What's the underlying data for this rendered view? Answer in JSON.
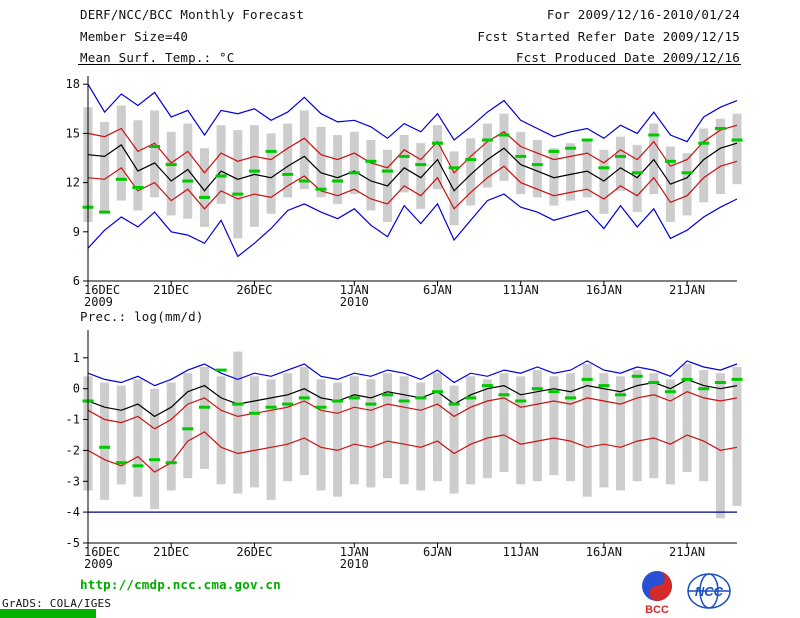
{
  "header": {
    "title": "DERF/NCC/BCC Monthly Forecast",
    "member_size": "Member Size=40",
    "forecast_for": "For 2009/12/16-2010/01/24",
    "fcst_refer": "Fcst Started Refer Date 2009/12/15",
    "fcst_produced": "Fcst Produced Date 2009/12/16"
  },
  "footer": {
    "website": "http://cmdp.ncc.cma.gov.cn",
    "credit": "GrADS: COLA/IGES"
  },
  "logos": {
    "bcc": "BCC",
    "ncc": "NCC"
  },
  "colors": {
    "link_green": "#00aa00",
    "footer_bar_green": "#00b400",
    "obs_green": "#00c800",
    "envelope_blue": "#0000dd",
    "quartile_red": "#cc1111",
    "mean_black": "#000000",
    "spread_gray": "#c8c8c8",
    "floor_navy": "#000080"
  },
  "chart_data": [
    {
      "type": "line",
      "name": "mean-surface-temperature",
      "title": "Mean Surf. Temp.: °C",
      "ylabel": "°C",
      "ylim": [
        6,
        18.5
      ],
      "yticks": [
        6,
        9,
        12,
        15,
        18
      ],
      "grid": false,
      "n_points": 40,
      "x_ticks": [
        {
          "day": 0,
          "label": "16DEC",
          "year": "2009"
        },
        {
          "day": 5,
          "label": "21DEC"
        },
        {
          "day": 10,
          "label": "26DEC"
        },
        {
          "day": 16,
          "label": "1JAN",
          "year": "2010"
        },
        {
          "day": 21,
          "label": "6JAN"
        },
        {
          "day": 26,
          "label": "11JAN"
        },
        {
          "day": 31,
          "label": "16JAN"
        },
        {
          "day": 36,
          "label": "21JAN"
        }
      ],
      "series": [
        {
          "name": "ensemble-max",
          "color": "#0000dd",
          "values": [
            18.0,
            16.3,
            17.4,
            16.7,
            17.5,
            16.0,
            16.4,
            14.9,
            16.4,
            16.2,
            16.5,
            15.8,
            16.3,
            17.2,
            16.2,
            15.7,
            15.8,
            15.4,
            14.7,
            15.6,
            15.1,
            16.2,
            14.6,
            15.4,
            16.3,
            17.0,
            15.8,
            15.3,
            14.8,
            15.1,
            15.3,
            14.7,
            15.5,
            15.0,
            16.3,
            14.9,
            14.5,
            16.0,
            16.6,
            17.0
          ]
        },
        {
          "name": "upper-quartile",
          "color": "#cc1111",
          "values": [
            15.0,
            14.8,
            15.3,
            13.9,
            14.4,
            13.2,
            13.9,
            12.6,
            13.8,
            13.3,
            13.6,
            13.4,
            14.1,
            14.7,
            13.7,
            13.4,
            13.8,
            13.2,
            12.9,
            14.0,
            13.4,
            14.5,
            12.6,
            13.6,
            14.5,
            15.1,
            14.2,
            13.8,
            13.4,
            13.6,
            13.8,
            13.2,
            14.0,
            13.4,
            14.5,
            13.0,
            13.4,
            14.5,
            15.2,
            15.5
          ]
        },
        {
          "name": "ensemble-mean",
          "color": "#000000",
          "values": [
            13.7,
            13.6,
            14.3,
            12.7,
            13.2,
            12.1,
            12.8,
            11.5,
            12.7,
            12.2,
            12.5,
            12.3,
            13.0,
            13.6,
            12.6,
            12.3,
            12.7,
            12.1,
            11.8,
            12.9,
            12.3,
            13.4,
            11.5,
            12.5,
            13.4,
            14.1,
            13.1,
            12.7,
            12.3,
            12.5,
            12.7,
            12.1,
            12.9,
            12.3,
            13.4,
            11.9,
            12.3,
            13.4,
            14.1,
            14.4
          ]
        },
        {
          "name": "lower-quartile",
          "color": "#cc1111",
          "values": [
            12.3,
            12.2,
            12.9,
            11.5,
            12.0,
            10.9,
            11.6,
            10.4,
            11.5,
            11.0,
            11.3,
            11.1,
            11.8,
            12.4,
            11.5,
            11.2,
            11.6,
            11.0,
            10.7,
            11.8,
            11.2,
            12.3,
            10.4,
            11.4,
            12.3,
            13.0,
            12.0,
            11.6,
            11.2,
            11.4,
            11.6,
            11.0,
            11.8,
            11.2,
            12.3,
            10.8,
            11.2,
            12.3,
            13.0,
            13.3
          ]
        },
        {
          "name": "ensemble-min",
          "color": "#0000dd",
          "values": [
            8.0,
            9.1,
            9.9,
            9.3,
            10.2,
            9.0,
            8.8,
            8.3,
            9.7,
            7.5,
            8.3,
            9.2,
            10.3,
            10.7,
            10.2,
            9.8,
            10.4,
            9.4,
            8.7,
            10.6,
            9.5,
            10.7,
            8.5,
            9.7,
            10.9,
            11.3,
            10.5,
            10.2,
            9.7,
            10.0,
            10.3,
            9.2,
            10.6,
            9.3,
            10.4,
            8.6,
            9.1,
            9.9,
            10.5,
            11.0
          ]
        }
      ],
      "bars": {
        "name": "ensemble-spread",
        "color": "#c8c8c8",
        "top": [
          16.6,
          15.7,
          16.7,
          15.8,
          16.4,
          15.1,
          15.6,
          14.1,
          15.5,
          15.2,
          15.5,
          15.0,
          15.6,
          16.4,
          15.4,
          14.9,
          15.1,
          14.6,
          14.0,
          14.9,
          14.4,
          15.5,
          13.9,
          14.7,
          15.6,
          16.2,
          15.1,
          14.6,
          14.1,
          14.4,
          14.6,
          14.0,
          14.8,
          14.3,
          15.6,
          14.2,
          13.8,
          15.3,
          15.9,
          16.2
        ],
        "bottom": [
          9.6,
          10.1,
          10.9,
          10.3,
          11.1,
          10.0,
          9.8,
          9.3,
          10.7,
          8.6,
          9.3,
          10.1,
          11.1,
          11.6,
          11.1,
          10.7,
          11.3,
          10.3,
          9.6,
          11.4,
          10.4,
          11.6,
          9.4,
          10.6,
          11.7,
          12.1,
          11.3,
          11.1,
          10.6,
          10.9,
          11.1,
          10.1,
          11.5,
          10.2,
          11.3,
          9.6,
          10.0,
          10.8,
          11.3,
          11.9
        ]
      },
      "markers": {
        "name": "observation",
        "color": "#00c800",
        "values": [
          10.5,
          10.2,
          12.2,
          11.7,
          14.2,
          13.1,
          12.1,
          11.1,
          12.4,
          11.3,
          12.7,
          13.9,
          12.5,
          12.1,
          11.6,
          12.1,
          12.6,
          13.3,
          12.7,
          13.6,
          13.1,
          14.4,
          12.9,
          13.4,
          14.6,
          14.9,
          13.6,
          13.1,
          13.9,
          14.1,
          14.6,
          12.9,
          13.6,
          12.6,
          14.9,
          13.3,
          12.6,
          14.4,
          15.3,
          14.6
        ]
      }
    },
    {
      "type": "line",
      "name": "precipitation",
      "title": "Prec.: log(mm/d)",
      "ylabel": "log(mm/d)",
      "ylim": [
        -5,
        1.9
      ],
      "yticks": [
        -5,
        -4,
        -3,
        -2,
        -1,
        0,
        1
      ],
      "grid": false,
      "n_points": 40,
      "x_ticks": [
        {
          "day": 0,
          "label": "16DEC",
          "year": "2009"
        },
        {
          "day": 5,
          "label": "21DEC"
        },
        {
          "day": 10,
          "label": "26DEC"
        },
        {
          "day": 16,
          "label": "1JAN",
          "year": "2010"
        },
        {
          "day": 21,
          "label": "6JAN"
        },
        {
          "day": 26,
          "label": "11JAN"
        },
        {
          "day": 31,
          "label": "16JAN"
        },
        {
          "day": 36,
          "label": "21JAN"
        }
      ],
      "series": [
        {
          "name": "ensemble-max",
          "color": "#0000dd",
          "values": [
            0.5,
            0.3,
            0.2,
            0.4,
            0.1,
            0.3,
            0.6,
            0.8,
            0.5,
            0.3,
            0.5,
            0.4,
            0.6,
            0.8,
            0.4,
            0.3,
            0.5,
            0.4,
            0.6,
            0.5,
            0.3,
            0.6,
            0.2,
            0.5,
            0.4,
            0.6,
            0.5,
            0.7,
            0.5,
            0.6,
            0.9,
            0.6,
            0.5,
            0.7,
            0.6,
            0.4,
            0.9,
            0.7,
            0.6,
            0.8
          ]
        },
        {
          "name": "ensemble-mean",
          "color": "#000000",
          "values": [
            -0.4,
            -0.6,
            -0.7,
            -0.5,
            -0.9,
            -0.6,
            -0.1,
            0.1,
            -0.3,
            -0.5,
            -0.4,
            -0.3,
            -0.2,
            0.0,
            -0.3,
            -0.4,
            -0.2,
            -0.3,
            -0.1,
            -0.2,
            -0.3,
            -0.1,
            -0.5,
            -0.2,
            0.0,
            0.1,
            -0.2,
            -0.1,
            0.0,
            -0.1,
            0.1,
            0.0,
            -0.1,
            0.1,
            0.2,
            0.0,
            0.3,
            0.1,
            0.0,
            0.1
          ]
        },
        {
          "name": "median",
          "color": "#cc1111",
          "values": [
            -0.7,
            -1.0,
            -1.1,
            -0.9,
            -1.3,
            -1.0,
            -0.5,
            -0.3,
            -0.7,
            -0.9,
            -0.8,
            -0.7,
            -0.6,
            -0.4,
            -0.7,
            -0.8,
            -0.6,
            -0.7,
            -0.5,
            -0.6,
            -0.7,
            -0.5,
            -0.9,
            -0.6,
            -0.4,
            -0.3,
            -0.6,
            -0.5,
            -0.4,
            -0.5,
            -0.3,
            -0.4,
            -0.5,
            -0.3,
            -0.2,
            -0.4,
            -0.1,
            -0.3,
            -0.4,
            -0.3
          ]
        },
        {
          "name": "lower-quartile",
          "color": "#cc1111",
          "values": [
            -2.0,
            -2.3,
            -2.5,
            -2.2,
            -2.7,
            -2.4,
            -1.7,
            -1.4,
            -1.9,
            -2.1,
            -2.0,
            -1.9,
            -1.8,
            -1.6,
            -1.9,
            -2.0,
            -1.8,
            -1.9,
            -1.7,
            -1.8,
            -1.9,
            -1.7,
            -2.1,
            -1.8,
            -1.6,
            -1.5,
            -1.8,
            -1.7,
            -1.6,
            -1.7,
            -1.9,
            -1.8,
            -1.9,
            -1.7,
            -1.6,
            -1.8,
            -1.5,
            -1.7,
            -2.0,
            -1.9
          ]
        },
        {
          "name": "ensemble-min-floor",
          "color": "#000080",
          "values": [
            -4.0,
            -4.0,
            -4.0,
            -4.0,
            -4.0,
            -4.0,
            -4.0,
            -4.0,
            -4.0,
            -4.0,
            -4.0,
            -4.0,
            -4.0,
            -4.0,
            -4.0,
            -4.0,
            -4.0,
            -4.0,
            -4.0,
            -4.0,
            -4.0,
            -4.0,
            -4.0,
            -4.0,
            -4.0,
            -4.0,
            -4.0,
            -4.0,
            -4.0,
            -4.0,
            -4.0,
            -4.0,
            -4.0,
            -4.0,
            -4.0,
            -4.0,
            -4.0,
            -4.0,
            -4.0,
            -4.0
          ]
        }
      ],
      "bars": {
        "name": "ensemble-spread",
        "color": "#c8c8c8",
        "top": [
          0.4,
          0.2,
          0.1,
          0.3,
          0.0,
          0.2,
          0.5,
          0.7,
          0.4,
          1.2,
          0.4,
          0.3,
          0.5,
          0.7,
          0.3,
          0.2,
          0.4,
          0.3,
          0.5,
          0.4,
          0.2,
          0.5,
          0.1,
          0.4,
          0.3,
          0.5,
          0.4,
          0.6,
          0.4,
          0.5,
          0.8,
          0.5,
          0.4,
          0.6,
          0.5,
          0.3,
          0.8,
          0.6,
          0.5,
          0.7
        ],
        "bottom": [
          -3.3,
          -3.6,
          -3.1,
          -3.5,
          -3.9,
          -3.3,
          -2.9,
          -2.6,
          -3.1,
          -3.4,
          -3.2,
          -3.6,
          -3.0,
          -2.8,
          -3.3,
          -3.5,
          -3.1,
          -3.2,
          -2.9,
          -3.1,
          -3.3,
          -3.0,
          -3.4,
          -3.1,
          -2.9,
          -2.7,
          -3.1,
          -3.0,
          -2.8,
          -3.0,
          -3.5,
          -3.2,
          -3.3,
          -3.0,
          -2.9,
          -3.1,
          -2.7,
          -3.0,
          -4.2,
          -3.8
        ]
      },
      "markers": {
        "name": "observation",
        "color": "#00c800",
        "values": [
          -0.4,
          -1.9,
          -2.4,
          -2.5,
          -2.3,
          -2.4,
          -1.3,
          -0.6,
          0.6,
          -0.5,
          -0.8,
          -0.6,
          -0.5,
          -0.3,
          -0.6,
          -0.4,
          -0.3,
          -0.5,
          -0.2,
          -0.4,
          -0.3,
          -0.1,
          -0.5,
          -0.3,
          0.1,
          -0.2,
          -0.4,
          0.0,
          -0.1,
          -0.3,
          0.3,
          0.1,
          -0.2,
          0.4,
          0.2,
          -0.1,
          0.3,
          0.0,
          0.2,
          0.3
        ]
      }
    }
  ]
}
